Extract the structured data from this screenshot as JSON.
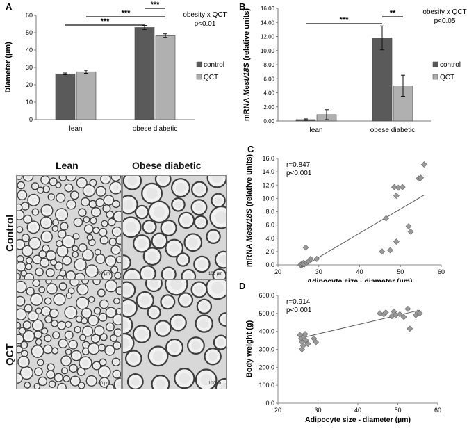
{
  "panel_letters": {
    "a": "A",
    "b": "B",
    "c": "C",
    "d": "D"
  },
  "chart_data": [
    {
      "id": "A",
      "type": "bar",
      "categories": [
        "lean",
        "obese diabetic"
      ],
      "series": [
        {
          "name": "control",
          "values": [
            26.3,
            53.0
          ],
          "errors": [
            0.5,
            1.2
          ],
          "color": "#5a5a5a"
        },
        {
          "name": "QCT",
          "values": [
            27.5,
            48.3
          ],
          "errors": [
            0.9,
            1.0
          ],
          "color": "#b0b0b0"
        }
      ],
      "ylabel": "Diameter (µm)",
      "ylim": [
        0,
        60
      ],
      "yticks": [
        "0",
        "10",
        "20",
        "30",
        "40",
        "50",
        "60"
      ],
      "annotation": [
        "obesity x QCT",
        "p<0.01"
      ],
      "significance": [
        "***",
        "***",
        "***"
      ]
    },
    {
      "id": "B",
      "type": "bar",
      "categories": [
        "lean",
        "obese diabetic"
      ],
      "series": [
        {
          "name": "control",
          "values": [
            0.2,
            11.8
          ],
          "errors": [
            0.1,
            1.7
          ],
          "color": "#5a5a5a"
        },
        {
          "name": "QCT",
          "values": [
            0.9,
            5.0
          ],
          "errors": [
            0.7,
            1.5
          ],
          "color": "#b0b0b0"
        }
      ],
      "ylabel_parts": [
        "mRNA ",
        "Mest/18S",
        " (relative units)"
      ],
      "ylim": [
        0,
        16
      ],
      "yticks": [
        "0.00",
        "2.00",
        "4.00",
        "6.00",
        "8.00",
        "10.00",
        "12.00",
        "14.00",
        "16.00"
      ],
      "annotation": [
        "obesity x QCT",
        "p<0.05"
      ],
      "significance": [
        "***",
        "**"
      ]
    },
    {
      "id": "C",
      "type": "scatter",
      "x": [
        25.5,
        25.8,
        26.0,
        26.3,
        26.5,
        26.8,
        27.0,
        27.5,
        28.0,
        29.5,
        45.5,
        46.5,
        47.5,
        48.5,
        49.0,
        49.0,
        49.5,
        50.5,
        52.0,
        52.5,
        54.5,
        55.0,
        55.8
      ],
      "y": [
        0.0,
        0.1,
        0.2,
        0.3,
        0.1,
        2.6,
        0.3,
        0.5,
        0.9,
        0.9,
        2.0,
        7.0,
        2.2,
        11.7,
        3.5,
        10.4,
        11.6,
        11.7,
        5.8,
        5.0,
        13.0,
        13.1,
        15.1
      ],
      "fit": {
        "x": [
          25.5,
          55.8
        ],
        "y": [
          -0.5,
          10.5
        ]
      },
      "xlabel": "Adipocyte size - diameter (µm)",
      "ylabel_parts": [
        "mRNA ",
        "Mest/18S",
        " (relative units)"
      ],
      "xlim": [
        20,
        60
      ],
      "ylim": [
        0,
        16
      ],
      "xticks": [
        "20",
        "30",
        "40",
        "50",
        "60"
      ],
      "yticks": [
        "0.0",
        "2.0",
        "4.0",
        "6.0",
        "8.0",
        "10.0",
        "12.0",
        "14.0",
        "16.0"
      ],
      "annotation": [
        "r=0.847",
        "p<0.001"
      ]
    },
    {
      "id": "D",
      "type": "scatter",
      "x": [
        25.5,
        25.8,
        26.0,
        26.0,
        26.3,
        26.5,
        26.8,
        27.0,
        27.5,
        29.0,
        29.5,
        45.5,
        46.5,
        47.0,
        48.5,
        49.0,
        49.5,
        50.5,
        51.5,
        52.5,
        53.0,
        54.5,
        55.0,
        55.5
      ],
      "y": [
        380,
        360,
        340,
        300,
        320,
        370,
        385,
        350,
        330,
        360,
        340,
        500,
        495,
        505,
        485,
        510,
        490,
        495,
        480,
        525,
        415,
        490,
        505,
        500
      ],
      "fit": {
        "x": [
          25.5,
          55.5
        ],
        "y": [
          362,
          518
        ]
      },
      "xlabel": "Adipocyte size - diameter (µm)",
      "ylabel": "Body weight (g)",
      "xlim": [
        20,
        60
      ],
      "ylim": [
        0,
        600
      ],
      "xticks": [
        "20",
        "30",
        "40",
        "50",
        "60"
      ],
      "yticks": [
        "0.0",
        "100.0",
        "200.0",
        "300.0",
        "400.0",
        "500.0",
        "600.0"
      ],
      "annotation": [
        "r=0.914",
        "p<0.001"
      ]
    }
  ],
  "micrographs": {
    "col_titles": [
      "Lean",
      "Obese diabetic"
    ],
    "row_titles": [
      "Control",
      "QCT"
    ],
    "scale_labels": [
      "100 µm",
      "100 µm",
      "100 µm",
      "100 µm"
    ]
  }
}
